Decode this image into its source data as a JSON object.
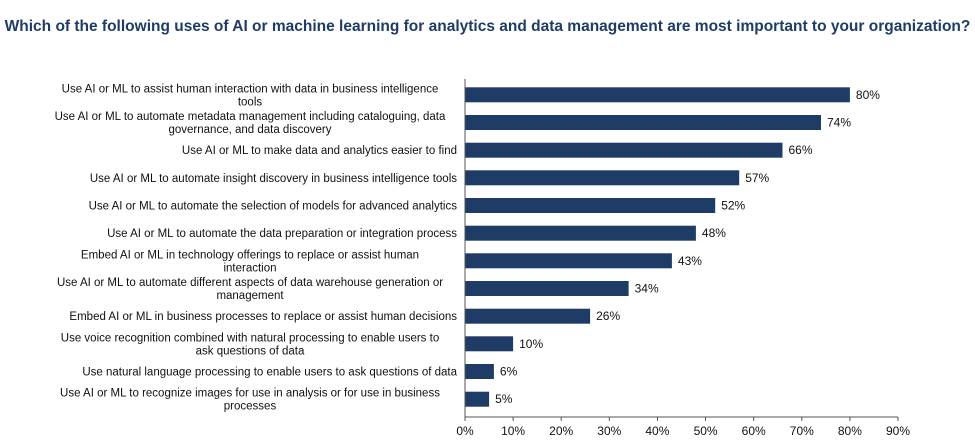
{
  "chart_data": {
    "type": "bar",
    "orientation": "horizontal",
    "title": "Which of the following uses of AI or machine learning for analytics and data management are most important to your organization?",
    "xlabel": "",
    "ylabel": "",
    "xlim": [
      0,
      90
    ],
    "x_ticks": [
      "0%",
      "10%",
      "20%",
      "30%",
      "40%",
      "50%",
      "60%",
      "70%",
      "80%",
      "90%"
    ],
    "grid": false,
    "legend": "none",
    "bar_color": "#1f3c66",
    "categories": [
      [
        "Use AI or ML to assist human interaction with data in business intelligence",
        "tools"
      ],
      [
        "Use AI or ML to automate metadata management including cataloguing, data",
        "governance, and data discovery"
      ],
      [
        "Use AI or ML to make data and analytics easier to find"
      ],
      [
        "Use AI or ML to automate insight discovery in business intelligence tools"
      ],
      [
        "Use AI or ML to automate the selection of models for advanced analytics"
      ],
      [
        "Use AI or ML to automate the data preparation or integration process"
      ],
      [
        "Embed AI or ML in technology offerings to replace or assist human",
        "interaction"
      ],
      [
        "Use AI or ML to automate different aspects of data warehouse generation or",
        "management"
      ],
      [
        "Embed AI or ML in business processes to replace or assist human decisions"
      ],
      [
        "Use voice recognition combined with natural processing to enable users to",
        "ask questions of data"
      ],
      [
        "Use natural language processing to enable users to ask questions of data"
      ],
      [
        "Use AI or ML to recognize images for use in analysis or for use in business",
        "processes"
      ]
    ],
    "values": [
      80,
      74,
      66,
      57,
      52,
      48,
      43,
      34,
      26,
      10,
      6,
      5
    ],
    "value_labels": [
      "80%",
      "74%",
      "66%",
      "57%",
      "52%",
      "48%",
      "43%",
      "34%",
      "26%",
      "10%",
      "6%",
      "5%"
    ]
  }
}
